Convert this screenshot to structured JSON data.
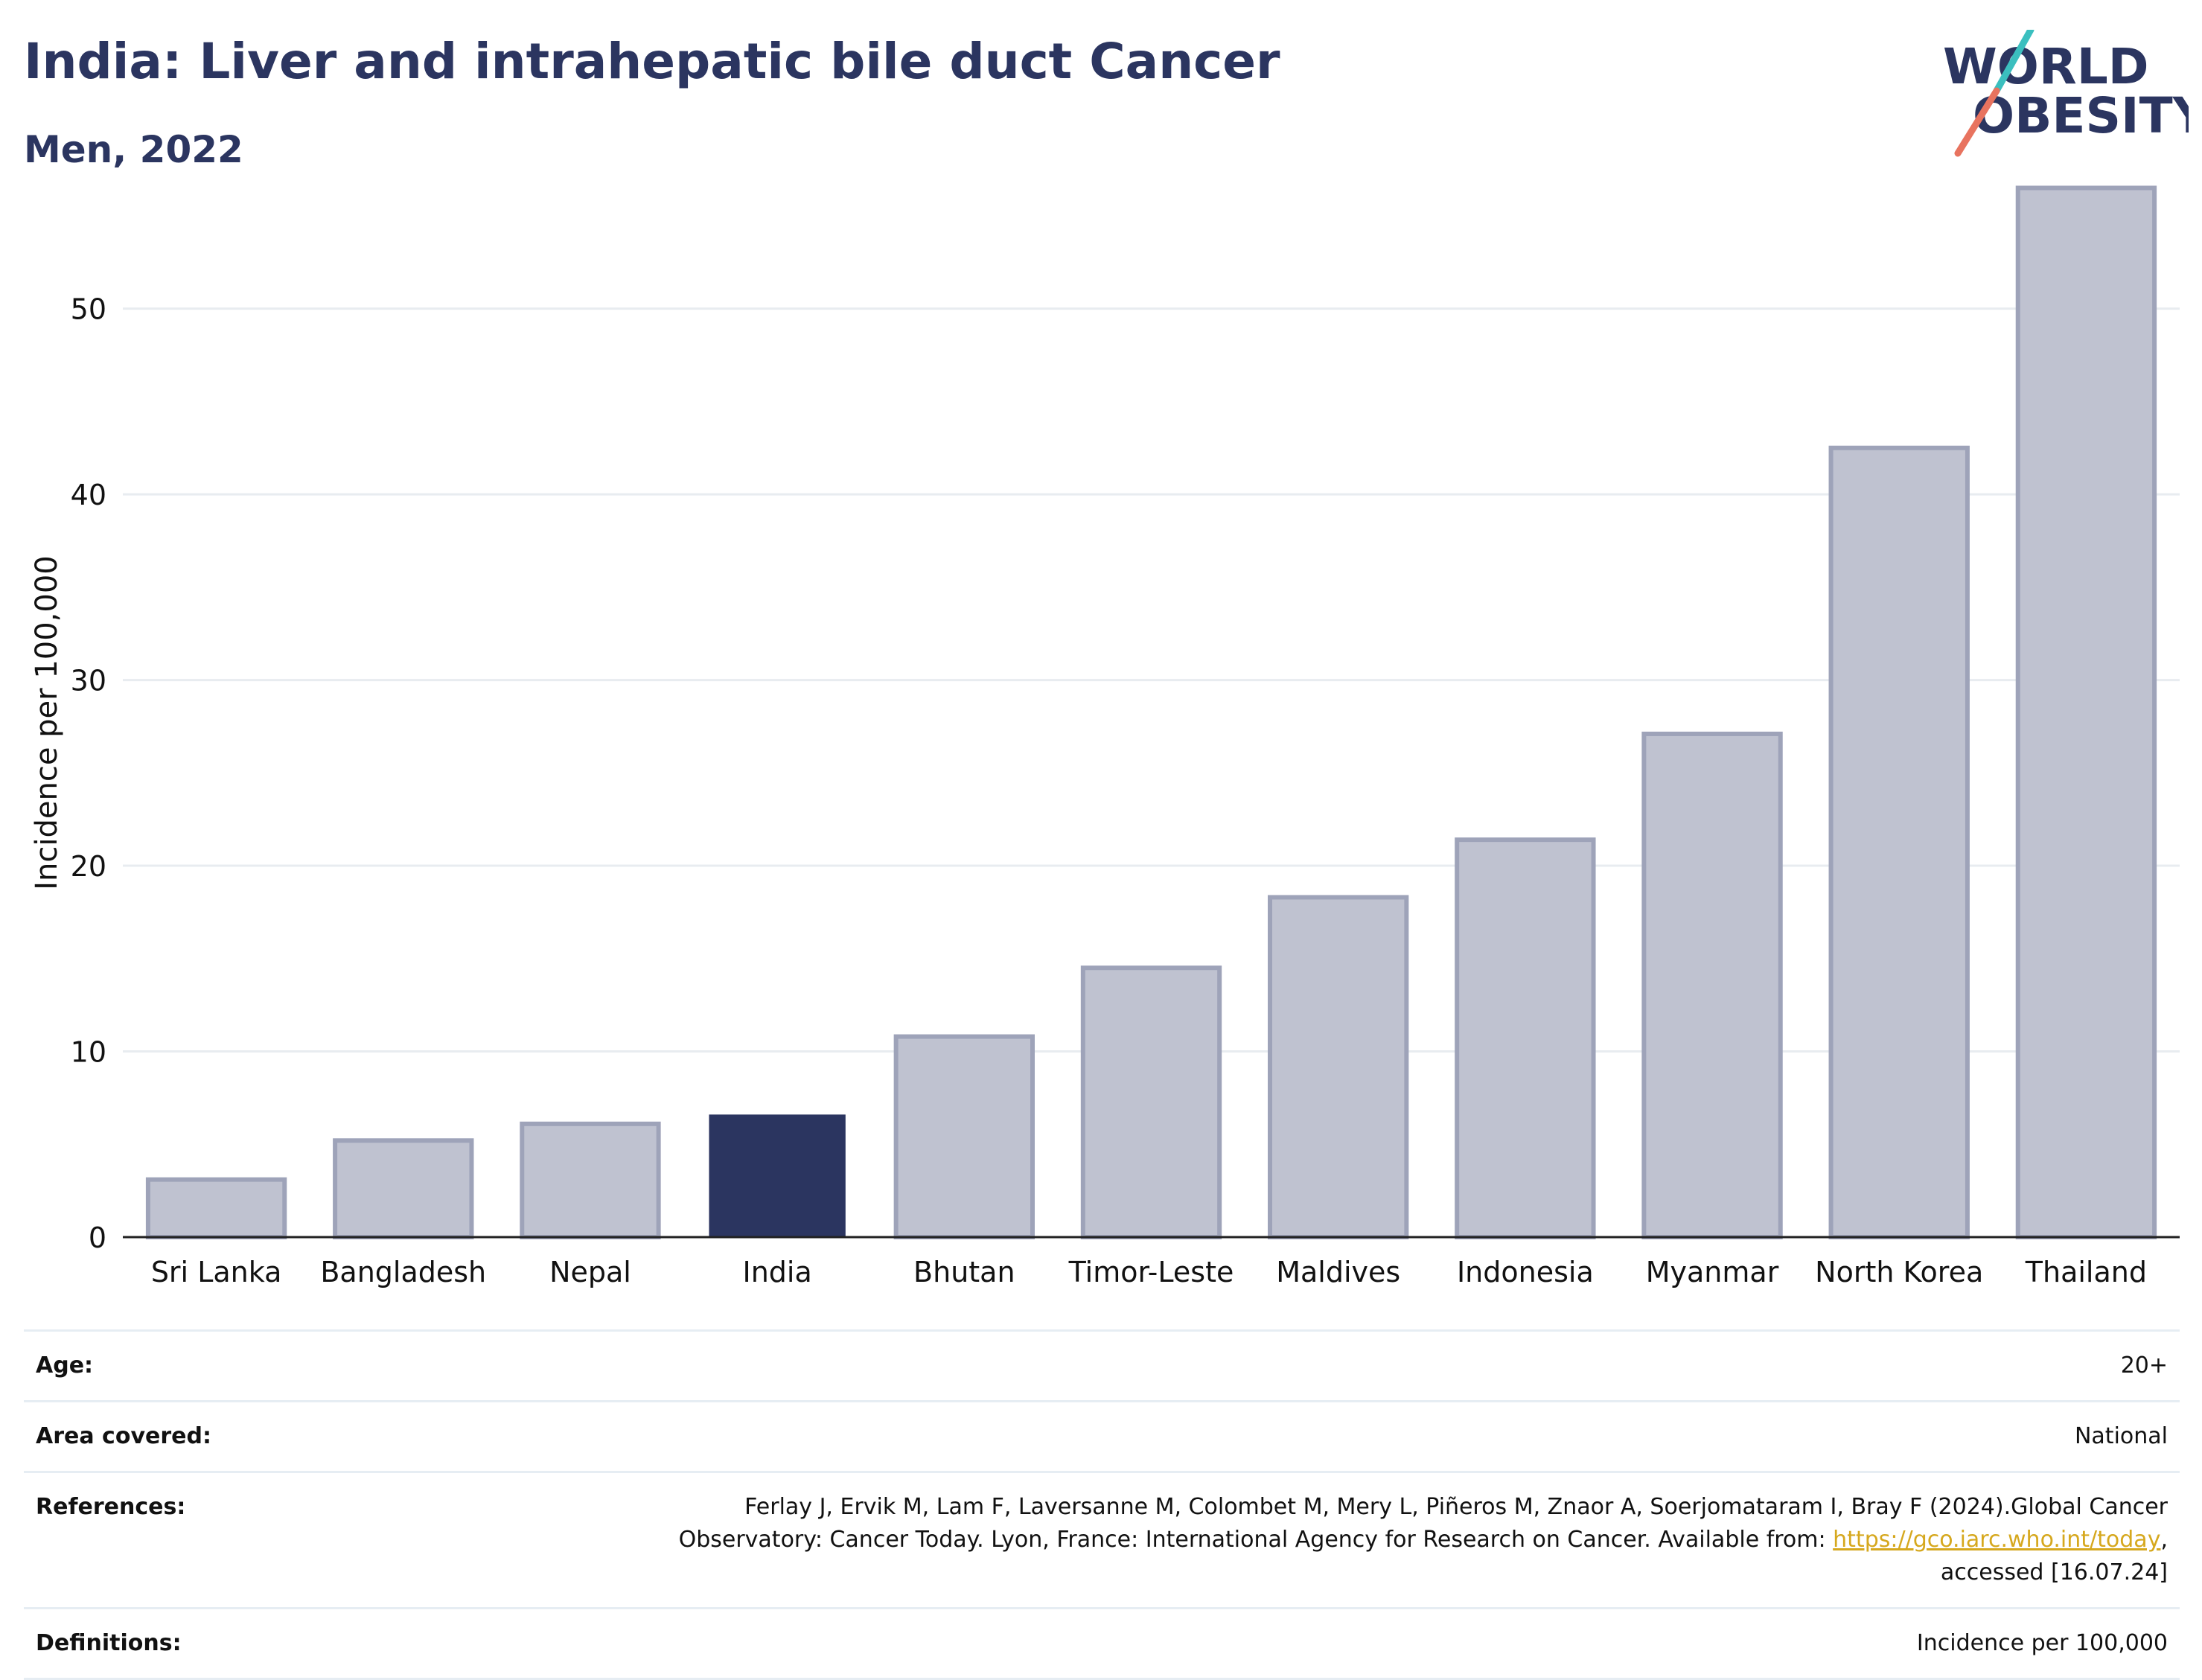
{
  "header": {
    "title": "India: Liver and intrahepatic bile duct Cancer",
    "subtitle": "Men, 2022"
  },
  "logo": {
    "line1": "WORLD",
    "line2": "OBESITY"
  },
  "colors": {
    "highlight": "#2b3560",
    "bar": "#bfc2d0",
    "bar_border": "#9ea3b9",
    "grid": "#e8ecf0",
    "accent_teal": "#3bbfbf",
    "accent_coral": "#e8735f",
    "link": "#d6a81e"
  },
  "chart_data": {
    "type": "bar",
    "categories": [
      "Sri Lanka",
      "Bangladesh",
      "Nepal",
      "India",
      "Bhutan",
      "Timor-Leste",
      "Maldives",
      "Indonesia",
      "Myanmar",
      "North Korea",
      "Thailand"
    ],
    "values": [
      3.1,
      5.2,
      6.1,
      6.6,
      10.8,
      14.5,
      18.3,
      21.4,
      27.1,
      42.5,
      56.5
    ],
    "highlight": "India",
    "ylabel": "Incidence per 100,000",
    "xlabel": "",
    "ylim": [
      0,
      57
    ],
    "yticks": [
      0,
      10,
      20,
      30,
      40,
      50
    ],
    "grid": true
  },
  "info": {
    "age_label": "Age:",
    "age_value": "20+",
    "area_label": "Area covered:",
    "area_value": "National",
    "references_label": "References:",
    "references_line1": "Ferlay J, Ervik M, Lam F, Laversanne M, Colombet M, Mery L, Piñeros M, Znaor A, Soerjomataram I, Bray F (2024).Global Cancer",
    "references_line2a": "Observatory: Cancer Today. Lyon, France: International Agency for Research on Cancer. Available from: ",
    "references_link": "https://gco.iarc.who.int/today",
    "references_line2b": ",",
    "references_line3": "accessed [16.07.24]",
    "definitions_label": "Definitions:",
    "definitions_value": "Incidence per 100,000"
  }
}
